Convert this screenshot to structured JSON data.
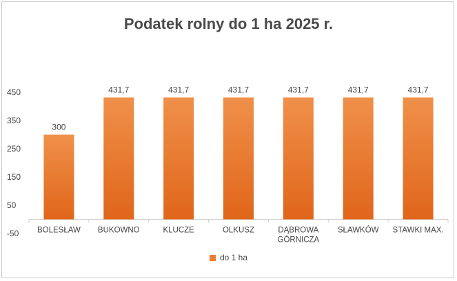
{
  "chart_data": {
    "type": "bar",
    "title": "Podatek rolny do 1 ha 2025 r.",
    "categories": [
      "BOLESŁAW",
      "BUKOWNO",
      "KLUCZE",
      "OLKUSZ",
      "DĄBROWA GÓRNICZA",
      "SŁAWKÓW",
      "STAWKI MAX."
    ],
    "series": [
      {
        "name": "do 1 ha",
        "values": [
          300,
          431.7,
          431.7,
          431.7,
          431.7,
          431.7,
          431.7
        ],
        "labels": [
          "300",
          "431,7",
          "431,7",
          "431,7",
          "431,7",
          "431,7",
          "431,7"
        ],
        "color": "#ED7D31"
      }
    ],
    "yticks": [
      -50,
      50,
      150,
      250,
      350,
      450
    ],
    "ylim": [
      -50,
      450
    ],
    "grid": false,
    "legend_position": "bottom"
  }
}
